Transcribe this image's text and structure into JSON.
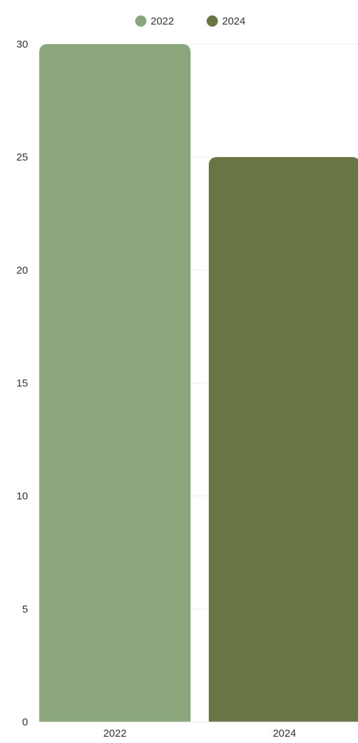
{
  "chart_data": {
    "type": "bar",
    "categories": [
      "2022",
      "2024"
    ],
    "series": [
      {
        "name": "2022",
        "color": "#8ba67c",
        "values": [
          30,
          null
        ]
      },
      {
        "name": "2024",
        "color": "#697545",
        "values": [
          null,
          25
        ]
      }
    ],
    "title": "",
    "xlabel": "",
    "ylabel": "",
    "ylim": [
      0,
      30
    ],
    "yticks": [
      "0",
      "5",
      "10",
      "15",
      "20",
      "25",
      "30"
    ],
    "grid": true,
    "legend": {
      "position": "top-center",
      "entries": [
        {
          "label": "2022",
          "color": "#8ba67c"
        },
        {
          "label": "2024",
          "color": "#697545"
        }
      ]
    }
  }
}
